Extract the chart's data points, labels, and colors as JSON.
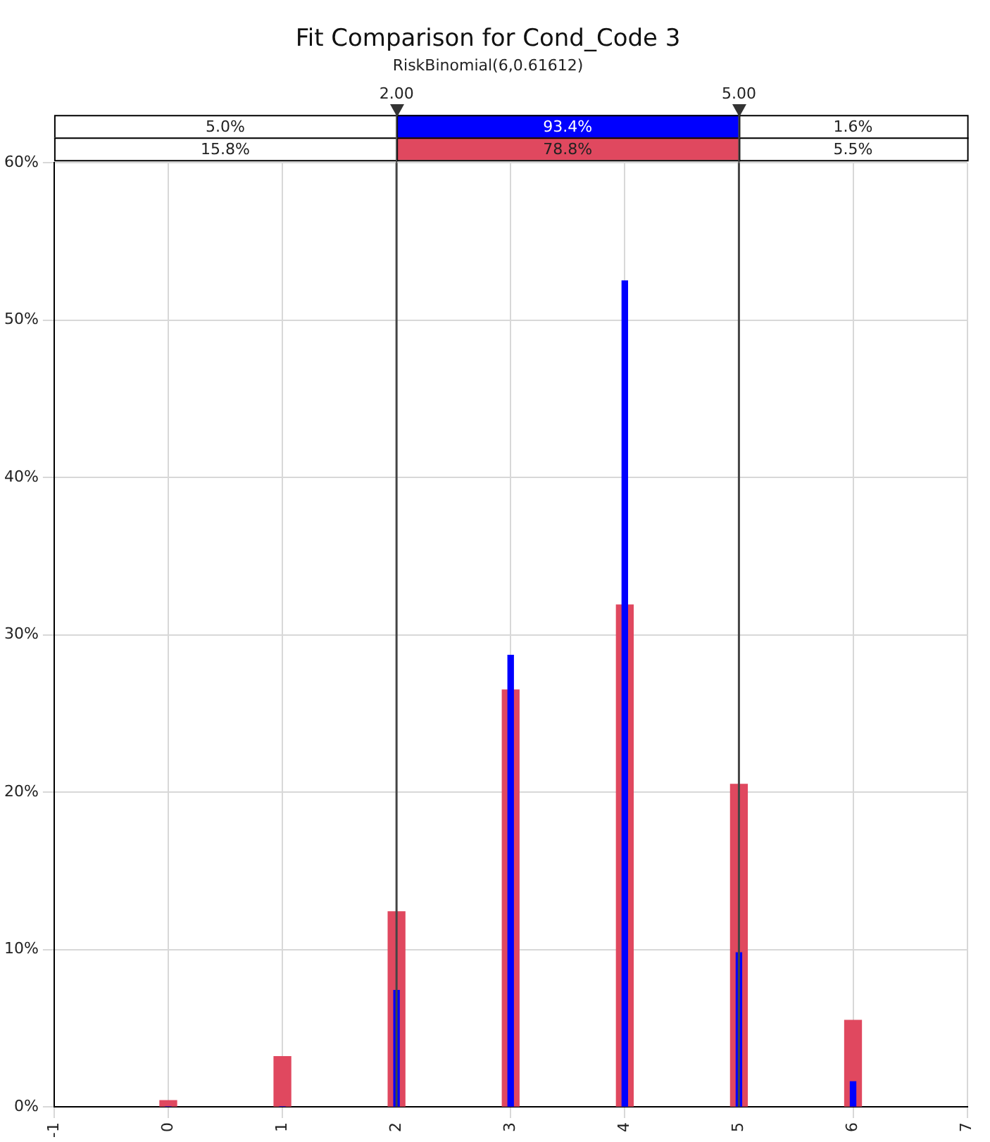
{
  "chart_data": {
    "type": "bar",
    "title": "Fit Comparison for Cond_Code 3",
    "subtitle": "RiskBinomial(6,0.61612)",
    "x": [
      0,
      1,
      2,
      3,
      4,
      5,
      6
    ],
    "series": [
      {
        "color": "#e0485f",
        "values": [
          0.4,
          3.2,
          12.4,
          26.5,
          31.9,
          20.5,
          5.5
        ]
      },
      {
        "color": "#0000ff",
        "values": [
          0,
          0,
          7.4,
          28.7,
          52.5,
          9.8,
          1.6
        ]
      }
    ],
    "xlim": [
      -1,
      7
    ],
    "xticks": [
      -1,
      0,
      1,
      2,
      3,
      4,
      5,
      6,
      7
    ],
    "ylim": [
      0,
      60
    ],
    "yticks": [
      {
        "value": 0,
        "label": "0%"
      },
      {
        "value": 10,
        "label": "10%"
      },
      {
        "value": 20,
        "label": "20%"
      },
      {
        "value": 30,
        "label": "30%"
      },
      {
        "value": 40,
        "label": "40%"
      },
      {
        "value": 50,
        "label": "50%"
      },
      {
        "value": 60,
        "label": "60%"
      }
    ],
    "ref_lines": [
      {
        "axis": "x",
        "value": 2,
        "label": "2.00",
        "color": "#444444"
      },
      {
        "axis": "x",
        "value": 5,
        "label": "5.00",
        "color": "#444444"
      }
    ],
    "annotations": [
      "5.0%",
      "93.4%",
      "1.6%",
      "15.8%",
      "78.8%",
      "5.5%"
    ],
    "grid": true,
    "legend": false
  }
}
